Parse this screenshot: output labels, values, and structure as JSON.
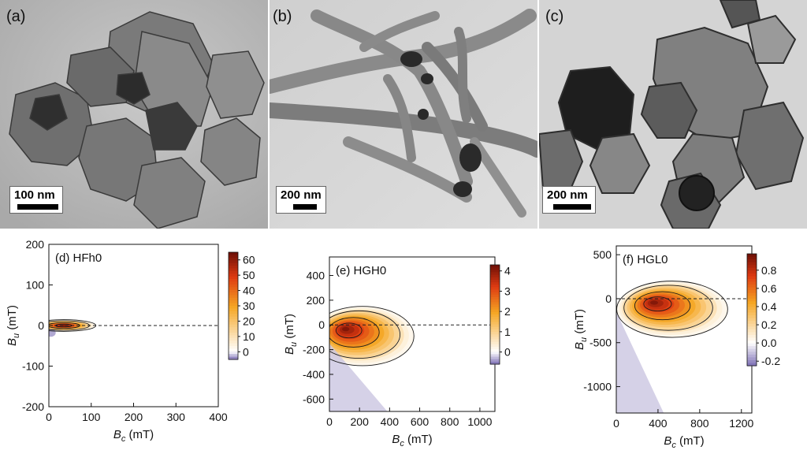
{
  "micrographs": [
    {
      "label": "(a)",
      "scale": "100 nm"
    },
    {
      "label": "(b)",
      "scale": "200 nm"
    },
    {
      "label": "(c)",
      "scale": "200 nm"
    }
  ],
  "chart_data": [
    {
      "type": "heatmap",
      "title": "(d) HFh0",
      "xlabel": "B_c (mT)",
      "ylabel": "B_u (mT)",
      "xlim": [
        0,
        400
      ],
      "ylim": [
        -200,
        200
      ],
      "xticks": [
        0,
        100,
        200,
        300,
        400
      ],
      "yticks": [
        -200,
        -100,
        0,
        100,
        200
      ],
      "colorbar": {
        "min": -5,
        "max": 65,
        "ticks": [
          0,
          10,
          20,
          30,
          40,
          50,
          60
        ]
      },
      "peak": {
        "x": 35,
        "y": 0,
        "value": 65
      },
      "colors": {
        "low": "#7d6fb5",
        "zero": "#ffffff",
        "mid": "#f5a623",
        "high": "#6b0f06"
      }
    },
    {
      "type": "heatmap",
      "title": "(e) HGH0",
      "xlabel": "B_c (mT)",
      "ylabel": "B_u (mT)",
      "xlim": [
        0,
        1100
      ],
      "ylim": [
        -700,
        550
      ],
      "xticks": [
        0,
        200,
        400,
        600,
        800,
        1000
      ],
      "yticks": [
        -600,
        -400,
        -200,
        0,
        200,
        400
      ],
      "colorbar": {
        "min": -0.6,
        "max": 4.3,
        "ticks": [
          0,
          1,
          2,
          3,
          4
        ]
      },
      "peak": {
        "x": 100,
        "y": -30,
        "value": 4.2
      },
      "colors": {
        "low": "#7d6fb5",
        "zero": "#ffffff",
        "mid": "#f5a623",
        "high": "#6b0f06"
      }
    },
    {
      "type": "heatmap",
      "title": "(f) HGL0",
      "xlabel": "B_c (mT)",
      "ylabel": "B_u (mT)",
      "xlim": [
        0,
        1300
      ],
      "ylim": [
        -1300,
        600
      ],
      "xticks": [
        0,
        400,
        800,
        1200
      ],
      "yticks": [
        -1000,
        -500,
        0,
        500
      ],
      "colorbar": {
        "min": -0.25,
        "max": 0.98,
        "ticks": [
          -0.2,
          0.0,
          0.2,
          0.4,
          0.6,
          0.8
        ]
      },
      "peak": {
        "x": 350,
        "y": -40,
        "value": 0.95
      },
      "colors": {
        "low": "#7d6fb5",
        "zero": "#ffffff",
        "mid": "#f5a623",
        "high": "#6b0f06"
      }
    }
  ]
}
